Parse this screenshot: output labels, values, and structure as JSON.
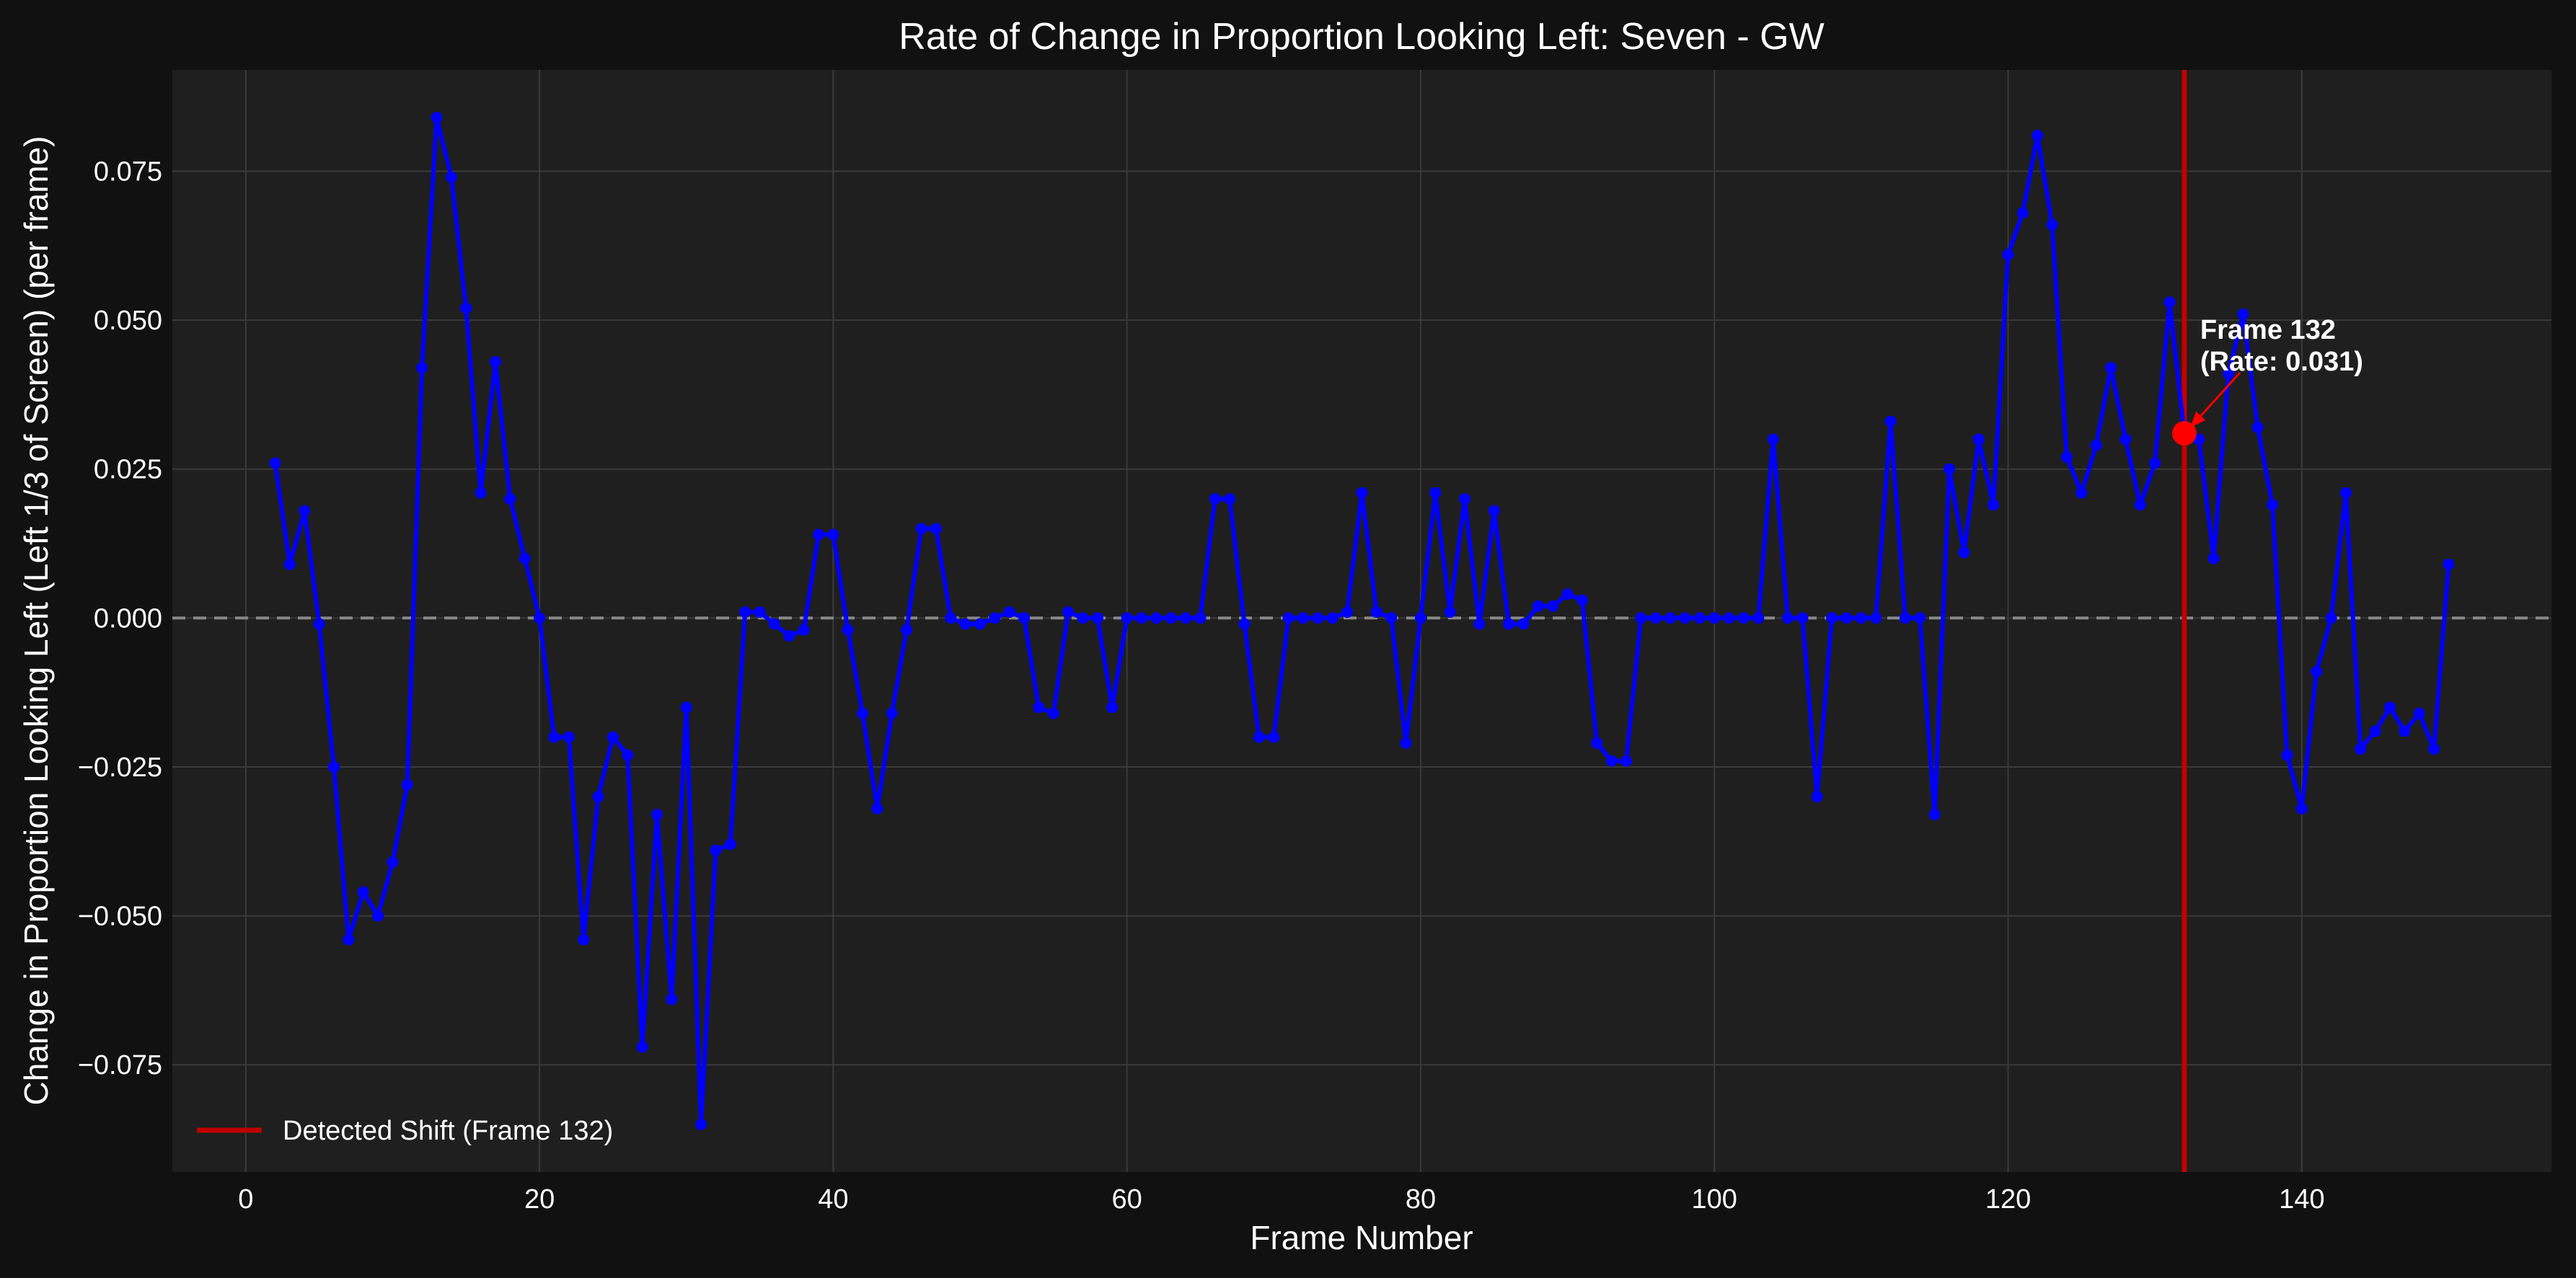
{
  "colors": {
    "background": "#111111",
    "plot_background": "#1f1f1f",
    "grid": "#3a3a3a",
    "series": "#0000ff",
    "shift_line": "#c00000",
    "marker": "#ff0000",
    "zero_line": "#888888"
  },
  "chart_data": {
    "type": "line",
    "title": "Rate of Change in Proportion Looking Left: Seven - GW",
    "xlabel": "Frame Number",
    "ylabel": "Change in Proportion Looking Left (Left 1/3 of Screen) (per frame)",
    "xlim": [
      -5,
      157
    ],
    "ylim": [
      -0.093,
      0.092
    ],
    "xticks": [
      0,
      20,
      40,
      60,
      80,
      100,
      120,
      140
    ],
    "xtick_labels": [
      "0",
      "20",
      "40",
      "60",
      "80",
      "100",
      "120",
      "140"
    ],
    "yticks": [
      0.075,
      0.05,
      0.025,
      0.0,
      -0.025,
      -0.05,
      -0.075
    ],
    "ytick_labels": [
      "0.075",
      "0.050",
      "0.025",
      "0.000",
      "−0.025",
      "−0.050",
      "−0.075"
    ],
    "grid": true,
    "reference_line_y": 0.0,
    "legend": {
      "position": "lower-left",
      "entries": [
        {
          "label": "Detected Shift (Frame 132)"
        }
      ]
    },
    "detected_shift": {
      "frame": 132,
      "rate": 0.031,
      "annotation_line1": "Frame 132",
      "annotation_line2": "(Rate: 0.031)"
    },
    "series": [
      {
        "x": [
          2,
          3,
          4,
          5,
          6,
          7,
          8,
          9,
          10,
          11,
          12,
          13,
          14,
          15,
          16,
          17,
          18,
          19,
          20,
          21,
          22,
          23,
          24,
          25,
          26,
          27,
          28,
          29,
          30,
          31,
          32,
          33,
          34,
          35,
          36,
          37,
          38,
          39,
          40,
          41,
          42,
          43,
          44,
          45,
          46,
          47,
          48,
          49,
          50,
          51,
          52,
          53,
          54,
          55,
          56,
          57,
          58,
          59,
          60,
          61,
          62,
          63,
          64,
          65,
          66,
          67,
          68,
          69,
          70,
          71,
          72,
          73,
          74,
          75,
          76,
          77,
          78,
          79,
          80,
          81,
          82,
          83,
          84,
          85,
          86,
          87,
          88,
          89,
          90,
          91,
          92,
          93,
          94,
          95,
          96,
          97,
          98,
          99,
          100,
          101,
          102,
          103,
          104,
          105,
          106,
          107,
          108,
          109,
          110,
          111,
          112,
          113,
          114,
          115,
          116,
          117,
          118,
          119,
          120,
          121,
          122,
          123,
          124,
          125,
          126,
          127,
          128,
          129,
          130,
          131,
          132,
          133,
          134,
          135,
          136,
          137,
          138,
          139,
          140,
          141,
          142,
          143,
          144,
          145,
          146,
          147,
          148,
          149,
          150
        ],
        "values": [
          0.026,
          0.009,
          0.018,
          -0.001,
          -0.025,
          -0.054,
          -0.046,
          -0.05,
          -0.041,
          -0.028,
          0.042,
          0.084,
          0.074,
          0.052,
          0.021,
          0.043,
          0.02,
          0.01,
          0.0,
          -0.02,
          -0.02,
          -0.054,
          -0.03,
          -0.02,
          -0.023,
          -0.072,
          -0.033,
          -0.064,
          -0.015,
          -0.085,
          -0.039,
          -0.038,
          0.001,
          0.001,
          -0.001,
          -0.003,
          -0.002,
          0.014,
          0.014,
          -0.002,
          -0.016,
          -0.032,
          -0.016,
          -0.002,
          0.015,
          0.015,
          0.0,
          -0.001,
          -0.001,
          0.0,
          0.001,
          0.0,
          -0.015,
          -0.016,
          0.001,
          0.0,
          0.0,
          -0.015,
          0.0,
          0.0,
          0.0,
          0.0,
          0.0,
          0.0,
          0.02,
          0.02,
          -0.001,
          -0.02,
          -0.02,
          0.0,
          0.0,
          0.0,
          0.0,
          0.001,
          0.021,
          0.001,
          0.0,
          -0.021,
          0.0,
          0.021,
          0.001,
          0.02,
          -0.001,
          0.018,
          -0.001,
          -0.001,
          0.002,
          0.002,
          0.004,
          0.003,
          -0.021,
          -0.024,
          -0.024,
          0.0,
          0.0,
          0.0,
          0.0,
          0.0,
          0.0,
          0.0,
          0.0,
          0.0,
          0.03,
          0.0,
          0.0,
          -0.03,
          0.0,
          0.0,
          0.0,
          0.0,
          0.033,
          0.0,
          0.0,
          -0.033,
          0.025,
          0.011,
          0.03,
          0.019,
          0.061,
          0.068,
          0.081,
          0.066,
          0.027,
          0.021,
          0.029,
          0.042,
          0.03,
          0.019,
          0.026,
          0.053,
          0.031,
          0.03,
          0.01,
          0.041,
          0.051,
          0.032,
          0.019,
          -0.023,
          -0.032,
          -0.009,
          0.0,
          0.021,
          -0.022,
          -0.019,
          -0.015,
          -0.019,
          -0.016,
          -0.022,
          0.009
        ]
      }
    ]
  }
}
